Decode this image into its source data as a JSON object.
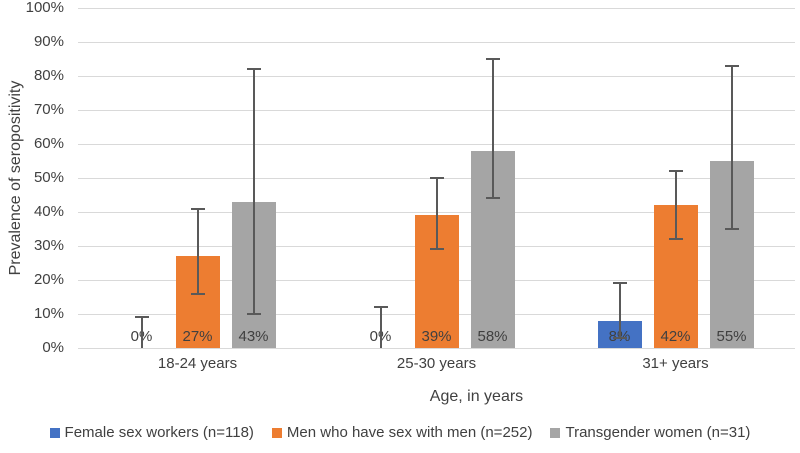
{
  "chart_data": {
    "type": "bar",
    "title": "",
    "xlabel": "Age, in years",
    "ylabel": "Prevalence of seropositivity",
    "categories": [
      "18-24 years",
      "25-30 years",
      "31+ years"
    ],
    "series": [
      {
        "name": "Female sex workers (n=118)",
        "color": "#4472C4",
        "values": [
          0,
          0,
          8
        ],
        "labels": [
          "0%",
          "0%",
          "8%"
        ],
        "err_low": [
          0,
          0,
          3
        ],
        "err_high": [
          9,
          12,
          19
        ]
      },
      {
        "name": "Men who have sex with men (n=252)",
        "color": "#ED7D31",
        "values": [
          27,
          39,
          42
        ],
        "labels": [
          "27%",
          "39%",
          "42%"
        ],
        "err_low": [
          16,
          29,
          32
        ],
        "err_high": [
          41,
          50,
          52
        ]
      },
      {
        "name": "Transgender women (n=31)",
        "color": "#A5A5A5",
        "values": [
          43,
          58,
          55
        ],
        "labels": [
          "43%",
          "58%",
          "55%"
        ],
        "err_low": [
          10,
          44,
          35
        ],
        "err_high": [
          82,
          85,
          83
        ]
      }
    ],
    "ylim": [
      0,
      100
    ],
    "ytick_step": 10,
    "ytick_labels": [
      "0%",
      "10%",
      "20%",
      "30%",
      "40%",
      "50%",
      "60%",
      "70%",
      "80%",
      "90%",
      "100%"
    ],
    "grid": true,
    "legend_position": "bottom",
    "gridline_color": "#D9D9D9",
    "error_bar_color": "#595959",
    "text_color": "#404040",
    "has_error_bars": true
  }
}
